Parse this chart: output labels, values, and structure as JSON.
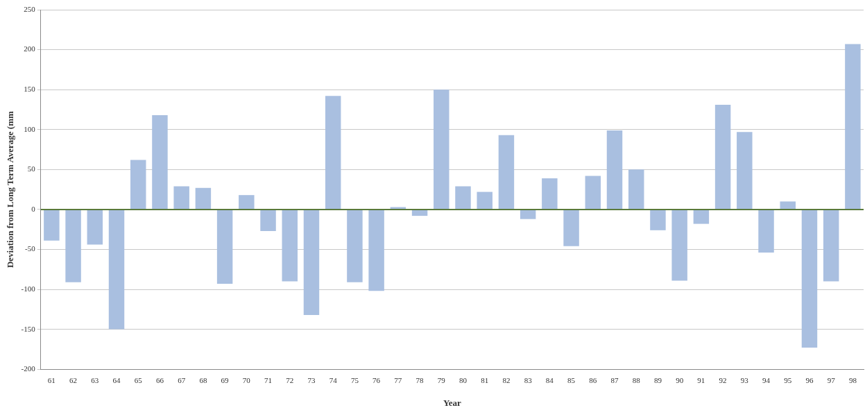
{
  "chart_data": {
    "type": "bar",
    "xlabel": "Year",
    "ylabel": "Deviation from Long Term Average (mm",
    "categories": [
      "61",
      "62",
      "63",
      "64",
      "65",
      "66",
      "67",
      "68",
      "69",
      "70",
      "71",
      "72",
      "73",
      "74",
      "75",
      "76",
      "77",
      "78",
      "79",
      "80",
      "81",
      "82",
      "83",
      "84",
      "85",
      "86",
      "87",
      "88",
      "89",
      "90",
      "91",
      "92",
      "93",
      "94",
      "95",
      "96",
      "97",
      "98"
    ],
    "values": [
      -39,
      -91,
      -44,
      -150,
      62,
      118,
      29,
      27,
      -93,
      18,
      -27,
      -90,
      -132,
      142,
      -91,
      -102,
      3,
      -8,
      150,
      29,
      22,
      93,
      -12,
      39,
      -46,
      42,
      99,
      50,
      -26,
      -89,
      -18,
      131,
      97,
      -54,
      10,
      -173,
      -90,
      207
    ],
    "color": "#a9bfe0",
    "ylim": [
      -200,
      250
    ],
    "yticks": [
      -200,
      -150,
      -100,
      -50,
      0,
      50,
      100,
      150,
      200,
      250
    ],
    "grid": "y",
    "legend": false,
    "ref_lines": [
      {
        "axis": "y",
        "value": 0,
        "color": "#5a7a3a"
      }
    ]
  }
}
